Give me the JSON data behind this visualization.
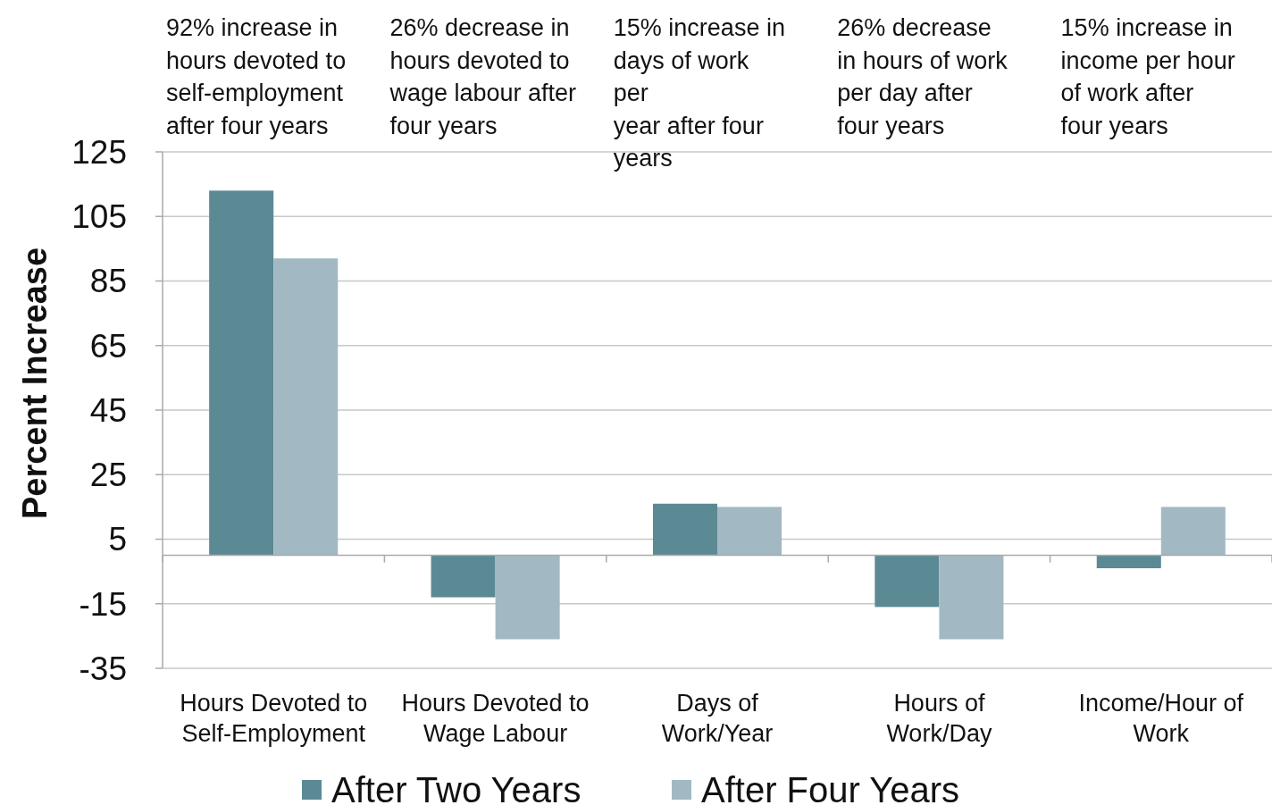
{
  "chart_data": {
    "type": "bar",
    "ylabel": "Percent Increase",
    "categories": [
      "Hours Devoted to\nSelf-Employment",
      "Hours Devoted to\nWage Labour",
      "Days of\nWork/Year",
      "Hours of\nWork/Day",
      "Income/Hour of\nWork"
    ],
    "series": [
      {
        "name": "After Two Years",
        "color": "#5b8a94",
        "values": [
          113,
          -13,
          16,
          -16,
          -4
        ]
      },
      {
        "name": "After Four Years",
        "color": "#a2b9c3",
        "values": [
          92,
          -26,
          15,
          -26,
          15
        ]
      }
    ],
    "ylim": [
      -35,
      125
    ],
    "yticks": [
      -35,
      -15,
      5,
      25,
      45,
      65,
      85,
      105,
      125
    ],
    "grid": "y",
    "legend": "bottom",
    "annotations": [
      "92% increase in\nhours devoted to\nself-employment\nafter four years",
      "26% decrease in\nhours devoted to\nwage labour after\nfour years",
      "15% increase in\ndays of work\nper\nyear after four\nyears",
      "26% decrease\nin hours of work\nper day after\nfour years",
      "15% increase in\nincome per hour\nof work after\nfour years"
    ]
  }
}
